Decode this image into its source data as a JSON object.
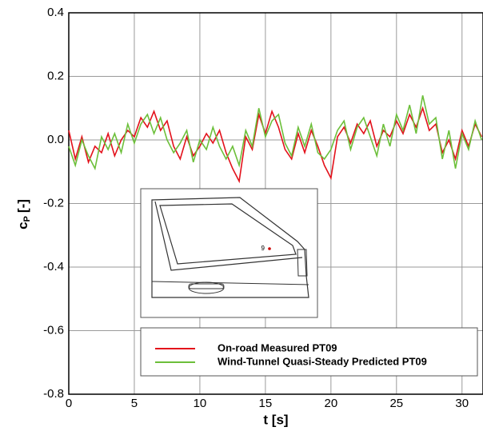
{
  "chart_data": {
    "type": "line",
    "xlabel": "t [s]",
    "ylabel": {
      "main": "c",
      "sub": "P",
      "unit": "[-]"
    },
    "inset_label": "9",
    "x": [
      0,
      0.5,
      1,
      1.5,
      2,
      2.5,
      3,
      3.5,
      4,
      4.5,
      5,
      5.5,
      6,
      6.5,
      7,
      7.5,
      8,
      8.5,
      9,
      9.5,
      10,
      10.5,
      11,
      11.5,
      12,
      12.5,
      13,
      13.5,
      14,
      14.5,
      15,
      15.5,
      16,
      16.5,
      17,
      17.5,
      18,
      18.5,
      19,
      19.5,
      20,
      20.5,
      21,
      21.5,
      22,
      22.5,
      23,
      23.5,
      24,
      24.5,
      25,
      25.5,
      26,
      26.5,
      27,
      27.5,
      28,
      28.5,
      29,
      29.5,
      30,
      30.5,
      31,
      31.5
    ],
    "series": [
      {
        "name": "On-road Measured PT09",
        "color": "#e3111b",
        "values": [
          0.03,
          -0.06,
          0.01,
          -0.07,
          -0.02,
          -0.04,
          0.02,
          -0.05,
          0.0,
          0.03,
          0.01,
          0.07,
          0.04,
          0.09,
          0.03,
          0.06,
          -0.02,
          -0.06,
          0.01,
          -0.05,
          -0.02,
          0.02,
          -0.01,
          0.03,
          -0.04,
          -0.09,
          -0.13,
          0.01,
          -0.03,
          0.08,
          0.02,
          0.09,
          0.04,
          -0.03,
          -0.06,
          0.02,
          -0.04,
          0.03,
          -0.02,
          -0.08,
          -0.12,
          0.01,
          0.04,
          -0.01,
          0.05,
          0.02,
          0.06,
          -0.02,
          0.03,
          0.01,
          0.06,
          0.02,
          0.08,
          0.04,
          0.1,
          0.03,
          0.05,
          -0.04,
          0.0,
          -0.06,
          0.03,
          -0.02,
          0.05,
          0.01
        ]
      },
      {
        "name": "Wind-Tunnel Quasi-Steady Predicted PT09",
        "color": "#6cbf3a",
        "values": [
          -0.02,
          -0.08,
          0.0,
          -0.05,
          -0.09,
          0.01,
          -0.03,
          0.02,
          -0.04,
          0.05,
          -0.01,
          0.05,
          0.08,
          0.02,
          0.07,
          0.0,
          -0.04,
          -0.01,
          0.03,
          -0.07,
          0.0,
          -0.03,
          0.04,
          -0.02,
          -0.06,
          -0.02,
          -0.08,
          0.03,
          -0.02,
          0.1,
          0.01,
          0.06,
          0.08,
          -0.01,
          -0.05,
          0.04,
          -0.02,
          0.05,
          -0.04,
          -0.06,
          -0.03,
          0.03,
          0.06,
          -0.03,
          0.04,
          0.07,
          0.01,
          -0.05,
          0.05,
          -0.02,
          0.08,
          0.03,
          0.11,
          0.02,
          0.14,
          0.05,
          0.07,
          -0.06,
          0.03,
          -0.09,
          0.02,
          -0.03,
          0.06,
          0.0
        ]
      }
    ],
    "xlim": [
      0,
      31.6
    ],
    "ylim": [
      -0.8,
      0.4
    ],
    "xticks": [
      0,
      5,
      10,
      15,
      20,
      25,
      30
    ],
    "yticks": [
      -0.8,
      -0.6,
      -0.4,
      -0.2,
      {
        "value": 0,
        "label": "0.0"
      },
      0.2,
      0.4
    ],
    "grid": true,
    "legend": "lower right"
  }
}
